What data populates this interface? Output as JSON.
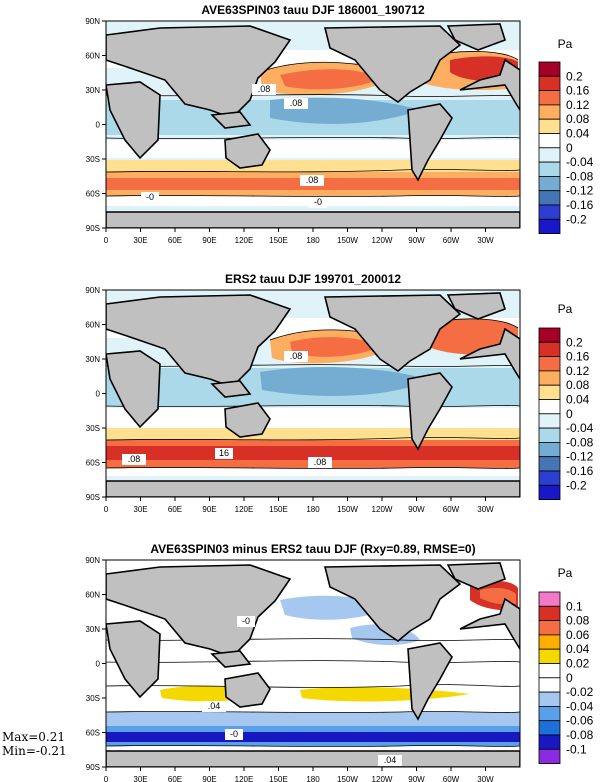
{
  "panels": [
    {
      "title": "AVE63SPIN03 tauu DJF 186001_190712",
      "unit": "Pa",
      "colorbar": {
        "labels": [
          "0.2",
          "0.16",
          "0.12",
          "0.08",
          "0.04",
          "0",
          "-0.04",
          "-0.08",
          "-0.12",
          "-0.16",
          "-0.2"
        ],
        "colors": [
          "#a50026",
          "#d73027",
          "#f46d43",
          "#fdae61",
          "#fee090",
          "#ffffff",
          "#e0f3f8",
          "#abd9e9",
          "#74add1",
          "#4575b4",
          "#2c3fd0",
          "#1818c8"
        ]
      },
      "contour_labels": [
        ".08",
        ".08",
        ".08",
        "-0",
        "-0"
      ]
    },
    {
      "title": "ERS2 tauu DJF 199701_200012",
      "unit": "Pa",
      "colorbar": {
        "labels": [
          "0.2",
          "0.16",
          "0.12",
          "0.08",
          "0.04",
          "0",
          "-0.04",
          "-0.08",
          "-0.12",
          "-0.16",
          "-0.2"
        ],
        "colors": [
          "#a50026",
          "#d73027",
          "#f46d43",
          "#fdae61",
          "#fee090",
          "#ffffff",
          "#e0f3f8",
          "#abd9e9",
          "#74add1",
          "#4575b4",
          "#2c3fd0",
          "#1818c8"
        ]
      },
      "contour_labels": [
        ".08",
        ".08",
        "16",
        ".08"
      ]
    },
    {
      "title": "AVE63SPIN03 minus ERS2 tauu DJF (Rxy=0.89, RMSE=0)",
      "unit": "Pa",
      "colorbar": {
        "labels": [
          "0.1",
          "0.08",
          "0.06",
          "0.04",
          "0.02",
          "0",
          "-0.02",
          "-0.04",
          "-0.06",
          "-0.08",
          "-0.1"
        ],
        "colors": [
          "#f07ac8",
          "#d73027",
          "#f46d43",
          "#fdae00",
          "#f5d800",
          "#ffffff",
          "#ffffff",
          "#a6c8f0",
          "#5aa0e8",
          "#1d70d8",
          "#1818c0",
          "#8a2be2"
        ]
      },
      "contour_labels": [
        "-0",
        "-0",
        ".04",
        ".04"
      ],
      "stats": {
        "max": "Max=0.21",
        "min": "Min=-0.21"
      }
    }
  ],
  "x_ticks": [
    "0",
    "30E",
    "60E",
    "90E",
    "120E",
    "150E",
    "180",
    "150W",
    "120W",
    "90W",
    "60W",
    "30W"
  ],
  "y_ticks": [
    "90N",
    "60N",
    "30N",
    "0",
    "30S",
    "60S",
    "90S"
  ]
}
